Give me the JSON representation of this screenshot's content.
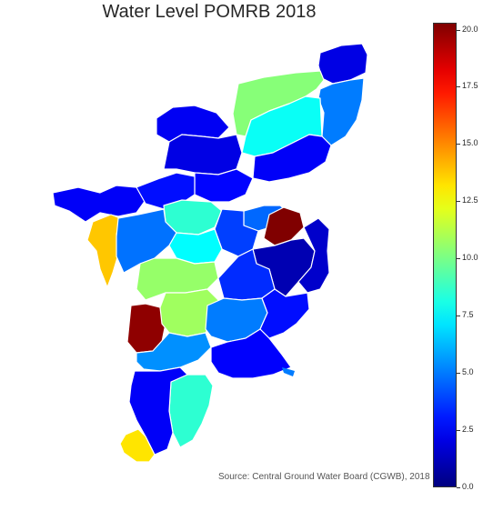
{
  "title": "Water Level POMRB 2018",
  "source": "Source: Central Ground Water Board (CGWB), 2018",
  "colorbar": {
    "min": 0.0,
    "max": 20.3,
    "colormap": "jet",
    "ticks": [
      "0.0",
      "2.5",
      "5.0",
      "7.5",
      "10.0",
      "12.5",
      "15.0",
      "17.5",
      "20.0"
    ],
    "tick_values": [
      0.0,
      2.5,
      5.0,
      7.5,
      10.0,
      12.5,
      15.0,
      17.5,
      20.0
    ]
  },
  "districts": [
    {
      "id": "north-east",
      "value": 2.0
    },
    {
      "id": "north-center",
      "value": 10.3
    },
    {
      "id": "north-east-coast",
      "value": 5.0
    },
    {
      "id": "north-mid",
      "value": 7.8
    },
    {
      "id": "north-west",
      "value": 2.3
    },
    {
      "id": "north-west-2",
      "value": 2.0
    },
    {
      "id": "east-coast-1",
      "value": 2.4
    },
    {
      "id": "center-north",
      "value": 2.6
    },
    {
      "id": "west-1",
      "value": 2.4
    },
    {
      "id": "west-2",
      "value": 2.8
    },
    {
      "id": "center-1",
      "value": 8.5
    },
    {
      "id": "center-2",
      "value": 4.6
    },
    {
      "id": "center-3",
      "value": 3.8
    },
    {
      "id": "center-4",
      "value": 20.3
    },
    {
      "id": "east-1",
      "value": 1.0
    },
    {
      "id": "east-2",
      "value": 1.5
    },
    {
      "id": "west-orange",
      "value": 13.8
    },
    {
      "id": "west-3",
      "value": 4.8
    },
    {
      "id": "center-5",
      "value": 7.6
    },
    {
      "id": "center-6",
      "value": 10.6
    },
    {
      "id": "center-7",
      "value": 3.4
    },
    {
      "id": "south-west-red",
      "value": 20.0
    },
    {
      "id": "center-8",
      "value": 10.8
    },
    {
      "id": "center-9",
      "value": 5.0
    },
    {
      "id": "east-3",
      "value": 2.8
    },
    {
      "id": "center-10",
      "value": 5.4
    },
    {
      "id": "south-1",
      "value": 2.5
    },
    {
      "id": "south-2",
      "value": 8.5
    },
    {
      "id": "south-3",
      "value": 2.4
    },
    {
      "id": "south-orange",
      "value": 13.2
    }
  ]
}
